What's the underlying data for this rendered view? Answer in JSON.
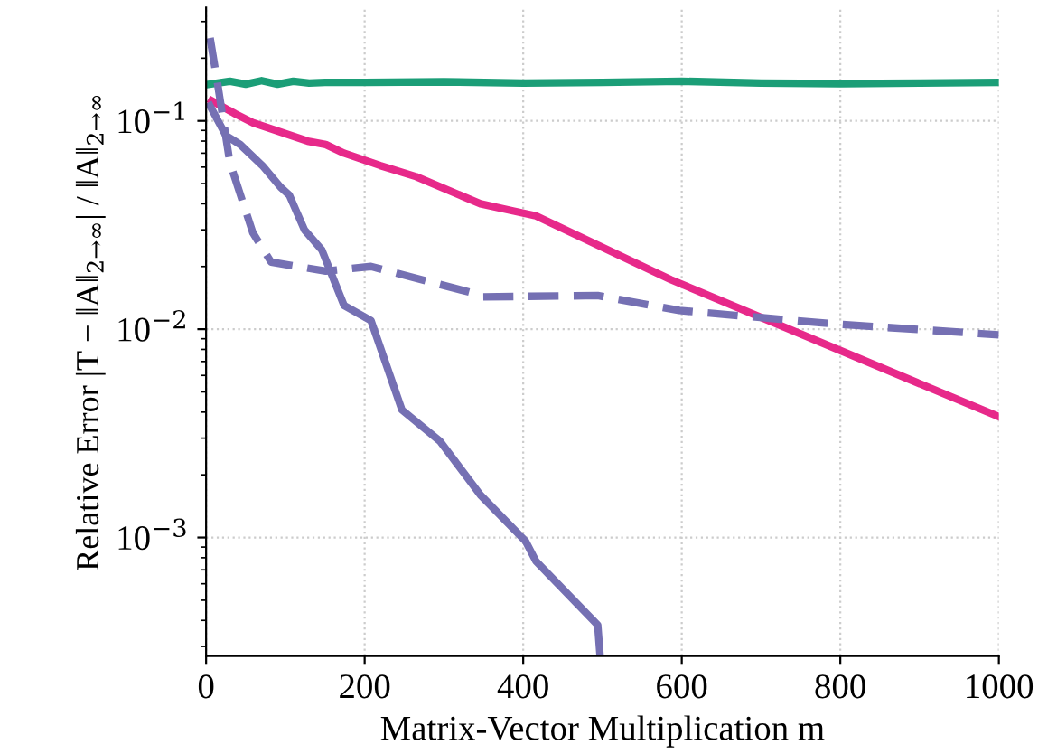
{
  "chart_data": {
    "type": "line",
    "xlabel": "Matrix-Vector Multiplication m",
    "ylabel": "Relative Error |T − ‖A‖$_{2→∞}$| / ‖A‖$_{2→∞}$",
    "log": "y",
    "grid": true,
    "marker": "none",
    "xlim": [
      0,
      1000
    ],
    "xticks": [
      0,
      200,
      400,
      600,
      800,
      1000
    ],
    "ylim": [
      0.00027,
      0.35
    ],
    "yticks": [
      {
        "value": 0.001,
        "label": "10$^{−3}$"
      },
      {
        "value": 0.01,
        "label": "10$^{−2}$"
      },
      {
        "value": 0.1,
        "label": "10$^{−1}$"
      }
    ],
    "series": [
      {
        "color": "#1b9e77",
        "line_style": "solid",
        "x": [
          5,
          30,
          50,
          70,
          90,
          110,
          130,
          150,
          200,
          300,
          400,
          500,
          600,
          700,
          800,
          900,
          1000
        ],
        "values": [
          0.15,
          0.155,
          0.15,
          0.156,
          0.15,
          0.155,
          0.152,
          0.153,
          0.153,
          0.154,
          0.152,
          0.153,
          0.155,
          0.152,
          0.151,
          0.152,
          0.153
        ]
      },
      {
        "color": "#e7298a",
        "line_style": "solid",
        "x": [
          7,
          37,
          59,
          128,
          151,
          174,
          220,
          265,
          346,
          387,
          416,
          586,
          1000
        ],
        "values": [
          0.125,
          0.108,
          0.098,
          0.08,
          0.077,
          0.07,
          0.061,
          0.054,
          0.04,
          0.037,
          0.035,
          0.0173,
          0.0038
        ]
      },
      {
        "color": "#7570b3",
        "line_style": "dashed",
        "x": [
          5,
          14,
          30,
          59,
          82,
          151,
          208,
          334,
          348,
          494,
          597,
          792,
          1000
        ],
        "values": [
          0.25,
          0.155,
          0.063,
          0.029,
          0.021,
          0.019,
          0.02,
          0.015,
          0.0143,
          0.0145,
          0.0123,
          0.0106,
          0.0094
        ]
      },
      {
        "color": "#7570b3",
        "line_style": "solid",
        "x": [
          5,
          25,
          43,
          71,
          94,
          105,
          124,
          146,
          174,
          208,
          247,
          295,
          346,
          403,
          416,
          494,
          497
        ],
        "values": [
          0.118,
          0.085,
          0.077,
          0.061,
          0.048,
          0.044,
          0.03,
          0.024,
          0.013,
          0.011,
          0.0041,
          0.0029,
          0.0016,
          0.00096,
          0.00077,
          0.00038,
          0.00027
        ]
      }
    ]
  }
}
